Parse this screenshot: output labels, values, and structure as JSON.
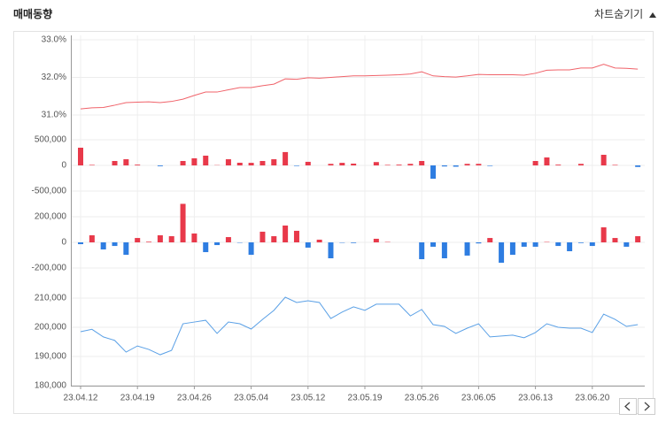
{
  "header": {
    "title": "매매동향",
    "toggle": "차트숨기기"
  },
  "chart_data": [
    {
      "type": "line",
      "color": "#f0636a",
      "grid": true,
      "ylim": [
        30.75,
        33.0
      ],
      "yticks": [
        {
          "value": 31.0,
          "label": "31.0%"
        },
        {
          "value": 32.0,
          "label": "32.0%"
        },
        {
          "value": 33.0,
          "label": "33.0%"
        }
      ],
      "values": [
        31.16,
        31.19,
        31.2,
        31.26,
        31.33,
        31.34,
        31.35,
        31.33,
        31.36,
        31.42,
        31.52,
        31.61,
        31.61,
        31.67,
        31.73,
        31.73,
        31.78,
        31.82,
        31.96,
        31.95,
        31.99,
        31.98,
        32.0,
        32.02,
        32.04,
        32.04,
        32.05,
        32.06,
        32.07,
        32.09,
        32.15,
        32.04,
        32.02,
        32.01,
        32.04,
        32.08,
        32.07,
        32.07,
        32.07,
        32.06,
        32.11,
        32.19,
        32.2,
        32.2,
        32.25,
        32.25,
        32.35,
        32.25,
        32.24,
        32.22
      ]
    },
    {
      "type": "bar",
      "positive_color": "#e8394a",
      "negative_color": "#2e7de1",
      "grid": true,
      "ylim": [
        -700000,
        700000
      ],
      "yticks": [
        {
          "value": -500000,
          "label": "-500,000"
        },
        0,
        {
          "value": 500000,
          "label": "500,000"
        }
      ],
      "values": [
        345000,
        10000,
        0,
        86000,
        120000,
        15000,
        0,
        -15000,
        0,
        86000,
        138000,
        190000,
        5000,
        120000,
        52000,
        50000,
        86000,
        120000,
        260000,
        -10000,
        70000,
        0,
        30000,
        50000,
        35000,
        0,
        65000,
        10000,
        15000,
        30000,
        86000,
        -260000,
        -20000,
        -25000,
        30000,
        30000,
        -10000,
        0,
        0,
        0,
        86000,
        155000,
        15000,
        0,
        30000,
        0,
        207000,
        10000,
        0,
        -30000
      ]
    },
    {
      "type": "bar",
      "positive_color": "#e8394a",
      "negative_color": "#2e7de1",
      "grid": true,
      "ylim": [
        -310000,
        310000
      ],
      "yticks": [
        {
          "value": -200000,
          "label": "-200,000"
        },
        0,
        {
          "value": 200000,
          "label": "200,000"
        }
      ],
      "values": [
        -14000,
        55000,
        -55000,
        -28000,
        -97000,
        34000,
        5000,
        55000,
        48000,
        300000,
        69000,
        -76000,
        -21000,
        41000,
        -3000,
        -97000,
        83000,
        48000,
        131000,
        90000,
        -41000,
        21000,
        -124000,
        -3000,
        -5000,
        0,
        28000,
        3000,
        0,
        0,
        -131000,
        -34000,
        -124000,
        0,
        -103000,
        -8000,
        34000,
        -159000,
        -97000,
        -34000,
        -34000,
        3000,
        -28000,
        -69000,
        -5000,
        -28000,
        117000,
        34000,
        -34000,
        48000
      ]
    },
    {
      "type": "line",
      "color": "#5aa0e6",
      "grid": true,
      "ylim": [
        180000,
        213000
      ],
      "yticks": [
        {
          "value": 180000,
          "label": "180,000"
        },
        {
          "value": 190000,
          "label": "190,000"
        },
        {
          "value": 200000,
          "label": "200,000"
        },
        {
          "value": 210000,
          "label": "210,000"
        }
      ],
      "categories": [
        "23.04.12",
        null,
        null,
        null,
        null,
        "23.04.19",
        null,
        null,
        null,
        null,
        "23.04.26",
        null,
        null,
        null,
        null,
        "23.05.04",
        null,
        null,
        null,
        null,
        "23.05.12",
        null,
        null,
        null,
        null,
        "23.05.19",
        null,
        null,
        null,
        null,
        "23.05.26",
        null,
        null,
        null,
        null,
        "23.06.05",
        null,
        null,
        null,
        null,
        "23.06.13",
        null,
        null,
        null,
        null,
        "23.06.20",
        null,
        null,
        null,
        null
      ],
      "values": [
        198500,
        199300,
        196700,
        195500,
        191500,
        193600,
        192400,
        190600,
        192100,
        201200,
        201800,
        202400,
        197900,
        201800,
        201200,
        199400,
        202700,
        205800,
        210300,
        208500,
        209100,
        208500,
        203000,
        205200,
        207000,
        205800,
        207900,
        207900,
        207900,
        203900,
        206100,
        200900,
        200300,
        197900,
        199700,
        201200,
        196700,
        197000,
        197300,
        196400,
        198200,
        201200,
        200000,
        199700,
        199700,
        198200,
        204500,
        202700,
        200300,
        200900
      ]
    }
  ]
}
